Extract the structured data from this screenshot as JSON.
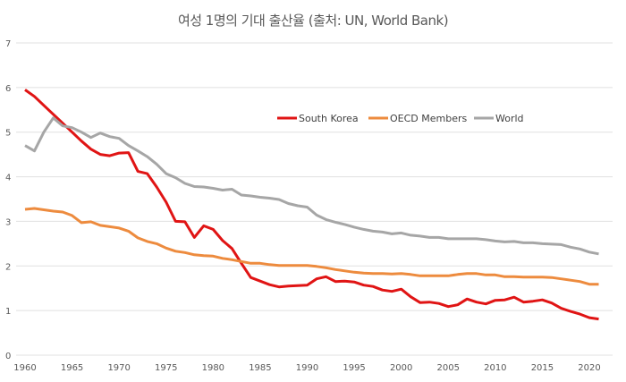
{
  "chart_data": {
    "type": "line",
    "title": "여성 1명의 기대 출산율 (출처: UN, World Bank)",
    "xlabel": "",
    "ylabel": "",
    "xlim": [
      1960,
      2021
    ],
    "ylim": [
      0,
      7
    ],
    "yticks": [
      0,
      1,
      2,
      3,
      4,
      5,
      6,
      7
    ],
    "xticks": [
      1960,
      1965,
      1970,
      1975,
      1980,
      1985,
      1990,
      1995,
      2000,
      2005,
      2010,
      2015,
      2020
    ],
    "grid": true,
    "legend_placement": "top-right",
    "x_start": 1960,
    "series": [
      {
        "name": "South Korea",
        "color": "#e01414",
        "values": [
          5.95,
          5.8,
          5.6,
          5.4,
          5.2,
          5.0,
          4.8,
          4.62,
          4.5,
          4.47,
          4.53,
          4.54,
          4.12,
          4.07,
          3.77,
          3.43,
          3.0,
          2.99,
          2.64,
          2.9,
          2.82,
          2.57,
          2.39,
          2.06,
          1.74,
          1.66,
          1.58,
          1.53,
          1.55,
          1.56,
          1.57,
          1.71,
          1.76,
          1.65,
          1.66,
          1.64,
          1.57,
          1.54,
          1.46,
          1.43,
          1.48,
          1.31,
          1.18,
          1.19,
          1.16,
          1.09,
          1.13,
          1.26,
          1.19,
          1.15,
          1.23,
          1.24,
          1.3,
          1.19,
          1.21,
          1.24,
          1.17,
          1.05,
          0.98,
          0.92,
          0.84,
          0.81
        ]
      },
      {
        "name": "OECD Members",
        "color": "#ed8b3e",
        "values": [
          3.27,
          3.29,
          3.26,
          3.23,
          3.21,
          3.13,
          2.97,
          2.99,
          2.91,
          2.88,
          2.85,
          2.78,
          2.63,
          2.55,
          2.5,
          2.4,
          2.33,
          2.3,
          2.25,
          2.23,
          2.22,
          2.17,
          2.14,
          2.1,
          2.06,
          2.06,
          2.03,
          2.01,
          2.01,
          2.01,
          2.01,
          1.99,
          1.96,
          1.92,
          1.89,
          1.86,
          1.84,
          1.83,
          1.83,
          1.82,
          1.83,
          1.81,
          1.78,
          1.78,
          1.78,
          1.78,
          1.81,
          1.83,
          1.83,
          1.8,
          1.8,
          1.76,
          1.76,
          1.75,
          1.75,
          1.75,
          1.74,
          1.71,
          1.68,
          1.65,
          1.59,
          1.59
        ]
      },
      {
        "name": "World",
        "color": "#a6a6a6",
        "values": [
          4.7,
          4.58,
          5.0,
          5.32,
          5.14,
          5.1,
          5.0,
          4.88,
          4.98,
          4.9,
          4.86,
          4.7,
          4.58,
          4.45,
          4.28,
          4.07,
          3.98,
          3.85,
          3.78,
          3.77,
          3.74,
          3.7,
          3.72,
          3.59,
          3.57,
          3.54,
          3.52,
          3.49,
          3.4,
          3.35,
          3.32,
          3.14,
          3.04,
          2.98,
          2.93,
          2.87,
          2.82,
          2.78,
          2.76,
          2.72,
          2.74,
          2.69,
          2.67,
          2.64,
          2.64,
          2.61,
          2.61,
          2.61,
          2.61,
          2.59,
          2.56,
          2.54,
          2.55,
          2.52,
          2.52,
          2.5,
          2.49,
          2.48,
          2.42,
          2.38,
          2.31,
          2.27
        ]
      }
    ]
  }
}
